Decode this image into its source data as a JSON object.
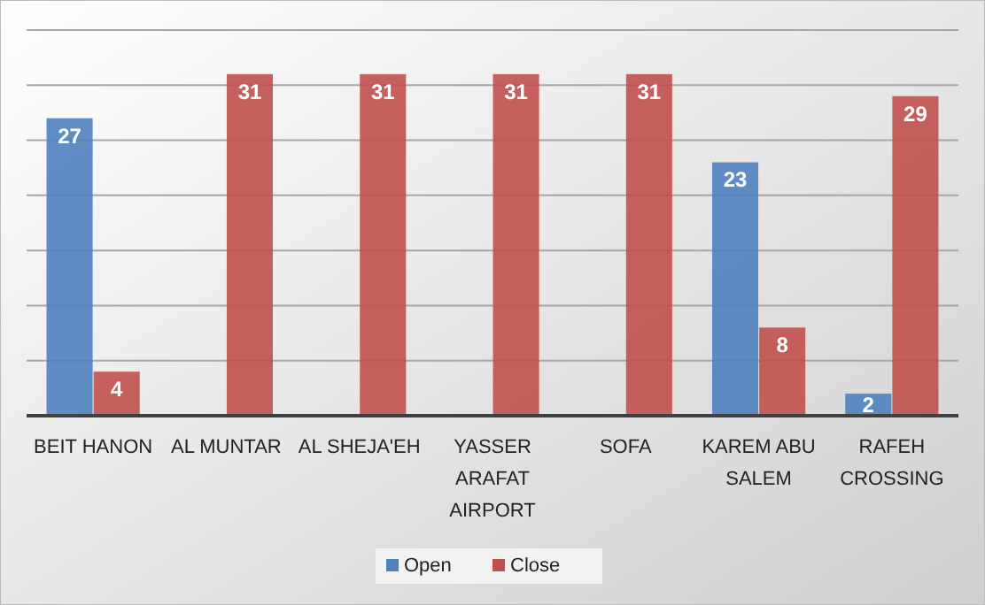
{
  "chart_data": {
    "type": "bar",
    "categories": [
      "BEIT HANON",
      "AL MUNTAR",
      "AL SHEJA'EH",
      "YASSER ARAFAT AIRPORT",
      "SOFA",
      "KAREM ABU SALEM",
      "RAFEH CROSSING"
    ],
    "series": [
      {
        "name": "Open",
        "color": "#4f81bd",
        "values": [
          27,
          null,
          null,
          null,
          null,
          23,
          2
        ]
      },
      {
        "name": "Close",
        "color": "#c0504d",
        "values": [
          4,
          31,
          31,
          31,
          31,
          8,
          29
        ]
      }
    ],
    "ylim": [
      0,
      35
    ],
    "yticks": [
      {
        "value": 0,
        "label": null
      },
      {
        "value": 5,
        "label": null
      },
      {
        "value": 10,
        "label": null
      },
      {
        "value": 15,
        "label": null
      },
      {
        "value": 20,
        "label": null
      },
      {
        "value": 25,
        "label": null
      },
      {
        "value": 30,
        "label": null
      },
      {
        "value": 35,
        "label": null
      }
    ],
    "tick_labels": "x",
    "grid": "y",
    "legend": "bottom",
    "data_labels": true
  }
}
